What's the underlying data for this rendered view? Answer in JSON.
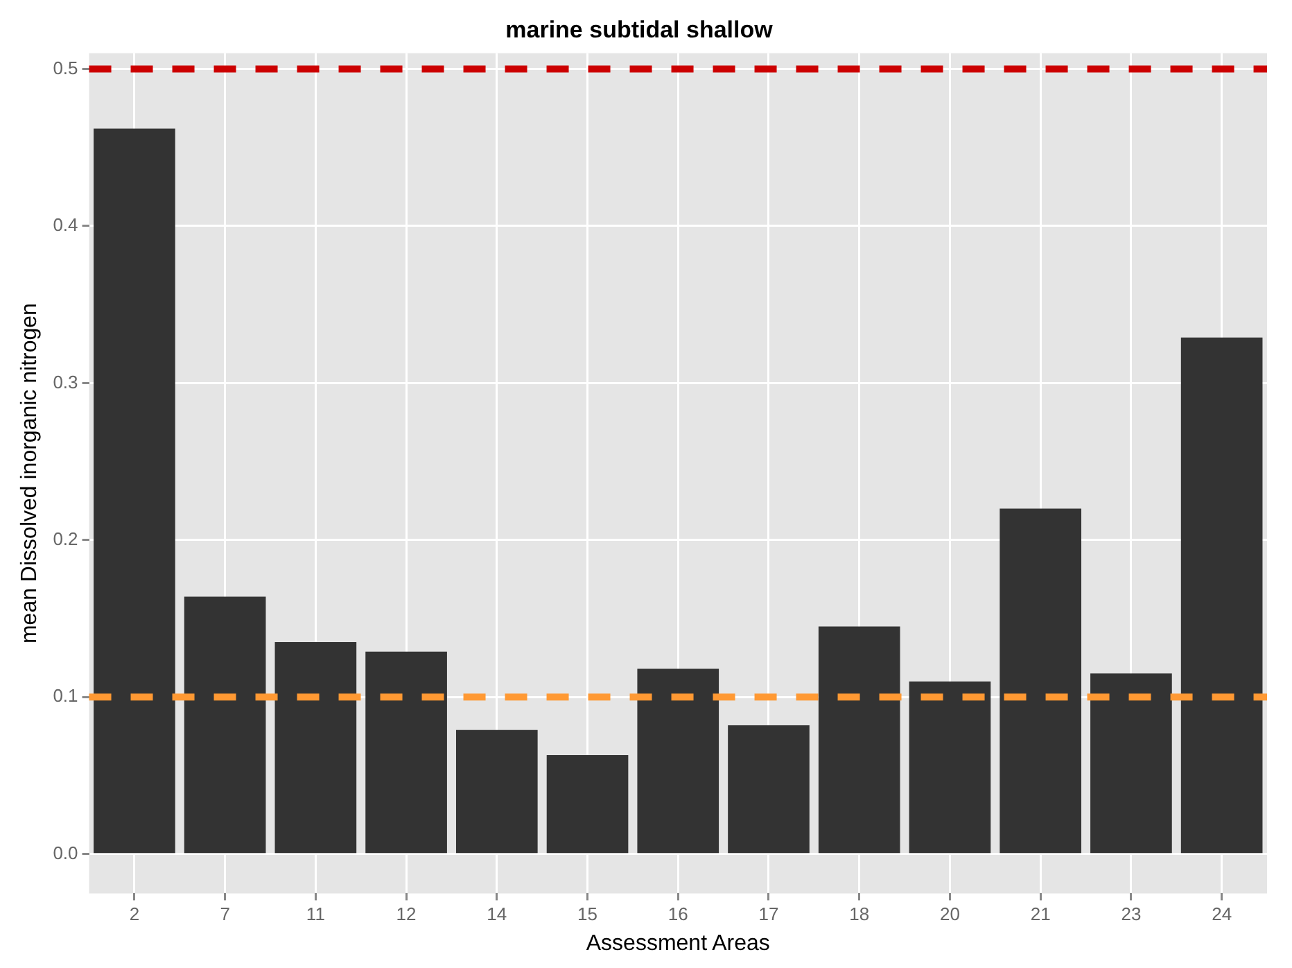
{
  "chart_data": {
    "type": "bar",
    "title": "marine subtidal shallow",
    "xlabel": "Assessment Areas",
    "ylabel": "mean Dissolved inorganic nitrogen",
    "categories": [
      "2",
      "7",
      "11",
      "12",
      "14",
      "15",
      "16",
      "17",
      "18",
      "20",
      "21",
      "23",
      "24"
    ],
    "values": [
      0.462,
      0.164,
      0.135,
      0.129,
      0.079,
      0.063,
      0.118,
      0.082,
      0.145,
      0.11,
      0.22,
      0.115,
      0.329
    ],
    "color": "#333333",
    "ylim": [
      -0.025,
      0.51
    ],
    "yticks": [
      {
        "value": 0,
        "label": "0.0"
      },
      {
        "value": 0.1,
        "label": "0.1"
      },
      {
        "value": 0.2,
        "label": "0.2"
      },
      {
        "value": 0.3,
        "label": "0.3"
      },
      {
        "value": 0.4,
        "label": "0.4"
      },
      {
        "value": 0.5,
        "label": "0.5"
      }
    ],
    "grid": true,
    "legend": false,
    "ref_lines": [
      {
        "axis": "y",
        "value": 0.5,
        "color": "#cc0000",
        "line_style": "dashed"
      },
      {
        "axis": "y",
        "value": 0.1,
        "color": "#ff9933",
        "line_style": "dashed"
      }
    ]
  }
}
